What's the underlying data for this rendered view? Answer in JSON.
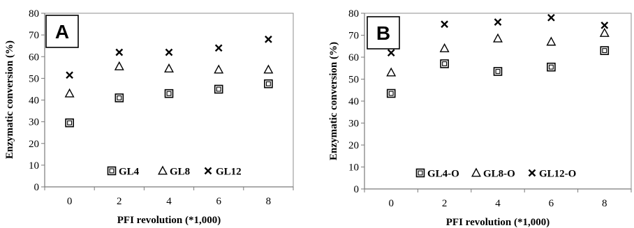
{
  "chart_data": [
    {
      "type": "scatter",
      "panel_label": "A",
      "xlabel": "PFI revolution (*1,000)",
      "ylabel": "Enzymatic conversion (%)",
      "xticks": [
        "0",
        "2",
        "4",
        "6",
        "8"
      ],
      "yticks": [
        "0",
        "10",
        "20",
        "30",
        "40",
        "50",
        "60",
        "70",
        "80"
      ],
      "ylim": [
        0,
        80
      ],
      "grid": false,
      "legend_position": "bottom-center",
      "series": [
        {
          "name": "GL4",
          "marker": "square",
          "x": [
            0,
            2,
            4,
            6,
            8
          ],
          "y": [
            29.5,
            41,
            43,
            45,
            47.5
          ]
        },
        {
          "name": "GL8",
          "marker": "triangle",
          "x": [
            0,
            2,
            4,
            6,
            8
          ],
          "y": [
            43,
            55.5,
            54.5,
            54,
            54
          ]
        },
        {
          "name": "GL12",
          "marker": "x",
          "x": [
            0,
            2,
            4,
            6,
            8
          ],
          "y": [
            51.5,
            62,
            62,
            64,
            68
          ]
        }
      ]
    },
    {
      "type": "scatter",
      "panel_label": "B",
      "xlabel": "PFI revolution (*1,000)",
      "ylabel": "Enzymatic conversion (%)",
      "xticks": [
        "0",
        "2",
        "4",
        "6",
        "8"
      ],
      "yticks": [
        "0",
        "10",
        "20",
        "30",
        "40",
        "50",
        "60",
        "70",
        "80"
      ],
      "ylim": [
        0,
        80
      ],
      "grid": false,
      "legend_position": "bottom-center",
      "series": [
        {
          "name": "GL4-O",
          "marker": "square",
          "x": [
            0,
            2,
            4,
            6,
            8
          ],
          "y": [
            43.5,
            57,
            53.5,
            55.5,
            63
          ]
        },
        {
          "name": "GL8-O",
          "marker": "triangle",
          "x": [
            0,
            2,
            4,
            6,
            8
          ],
          "y": [
            53,
            64,
            68.5,
            67,
            71
          ]
        },
        {
          "name": "GL12-O",
          "marker": "x",
          "x": [
            0,
            2,
            4,
            6,
            8
          ],
          "y": [
            62,
            75,
            76,
            78,
            74.5
          ]
        }
      ]
    }
  ]
}
